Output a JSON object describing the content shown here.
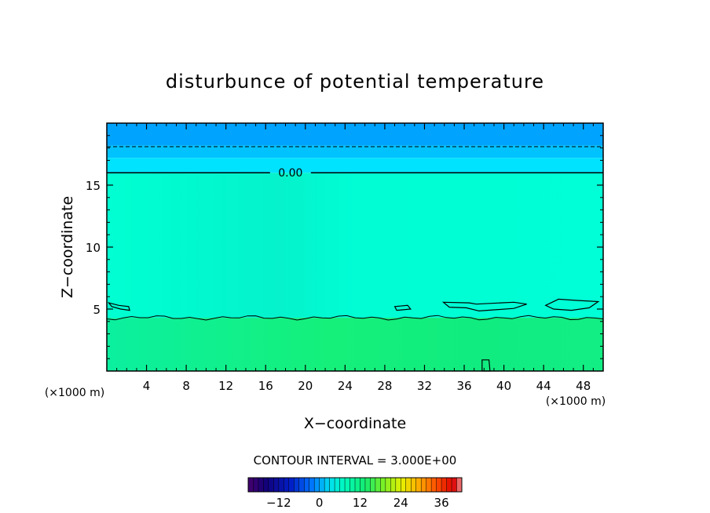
{
  "chart_data": {
    "type": "heatmap",
    "title": "disturbunce of potential temperature",
    "xlabel": "X−coordinate",
    "ylabel": "Z−coordinate",
    "x_unit": "(×1000 m)",
    "y_unit": "(×1000 m)",
    "xlim": [
      0,
      50
    ],
    "ylim": [
      0,
      20
    ],
    "x_ticks": [
      4,
      8,
      12,
      16,
      20,
      24,
      28,
      32,
      36,
      40,
      44,
      48
    ],
    "y_ticks": [
      5,
      10,
      15
    ],
    "layers": [
      {
        "z_from": 0,
        "z_to": 4.3,
        "value": 3
      },
      {
        "z_from": 4.3,
        "z_to": 16,
        "value": 0
      },
      {
        "z_from": 16,
        "z_to": 17.2,
        "value": -1.5
      },
      {
        "z_from": 17.2,
        "z_to": 18.2,
        "value": -3
      },
      {
        "z_from": 18.2,
        "z_to": 20,
        "value": -4.5
      }
    ],
    "contours": [
      {
        "level": 0.0,
        "z": 16.0,
        "label": "0.00",
        "label_x": 18.5,
        "style": "solid"
      },
      {
        "level": -3.0,
        "z": 18.1,
        "style": "dashed"
      },
      {
        "level": 3.0,
        "z_approx": 4.3,
        "style": "solid"
      }
    ],
    "contour_interval": "CONTOUR INTERVAL = 3.000E+00",
    "colorbar": {
      "vmin": -21,
      "vmax": 42,
      "ticks": [
        -12,
        0,
        12,
        24,
        36
      ],
      "tick_labels": [
        "−12",
        "0",
        "12",
        "24",
        "36"
      ]
    }
  }
}
